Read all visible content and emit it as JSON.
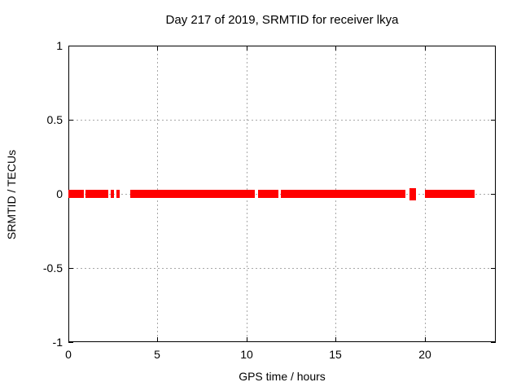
{
  "page": {
    "background": "#ffffff"
  },
  "chart_data": {
    "type": "scatter",
    "title": "Day 217 of 2019, SRMTID for receiver lkya",
    "xlabel": "GPS time / hours",
    "ylabel": "SRMTID / TECUs",
    "xlim": [
      0,
      24
    ],
    "ylim": [
      -1,
      1
    ],
    "x_tick_values": [
      0,
      5,
      10,
      15,
      20
    ],
    "x_tick_labels": [
      "0",
      "5",
      "10",
      "15",
      "20"
    ],
    "y_tick_values": [
      -1,
      -0.5,
      0,
      0.5,
      1
    ],
    "y_tick_labels": [
      "-1",
      "-0.5",
      "0",
      "0.5",
      "1"
    ],
    "grid": true,
    "legend_position": "none",
    "colors": {
      "series": "#ff0000",
      "grid": "#a8a8a8",
      "axis": "#000000",
      "text": "#000000",
      "background": "#ffffff"
    },
    "series": [
      {
        "name": "SRMTID",
        "marker_color": "#ff0000",
        "baseline_value": 0,
        "value_spread": 0.027,
        "segments_gps_hours": [
          {
            "from": 0.0,
            "to": 0.85
          },
          {
            "from": 0.96,
            "to": 2.24
          },
          {
            "from": 2.38,
            "to": 2.56
          },
          {
            "from": 2.7,
            "to": 2.88
          },
          {
            "from": 3.47,
            "to": 10.45
          },
          {
            "from": 10.65,
            "to": 11.79
          },
          {
            "from": 11.93,
            "to": 18.93
          },
          {
            "from": 19.15,
            "to": 19.52,
            "spread": 0.04
          },
          {
            "from": 20.0,
            "to": 22.81
          }
        ]
      }
    ]
  }
}
